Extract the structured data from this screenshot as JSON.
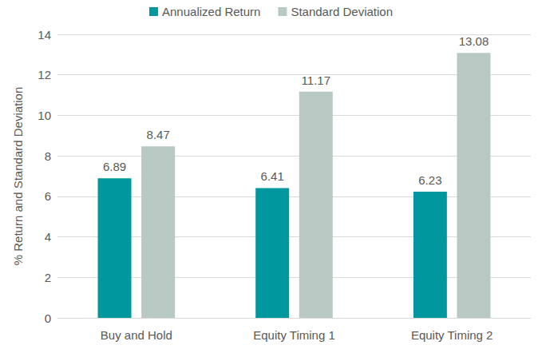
{
  "chart_data": {
    "type": "bar",
    "categories": [
      "Buy and Hold",
      "Equity Timing 1",
      "Equity Timing 2"
    ],
    "series": [
      {
        "name": "Annualized Return",
        "color": "#00979f",
        "values": [
          6.89,
          6.41,
          6.23
        ]
      },
      {
        "name": "Standard Deviation",
        "color": "#b8c9c3",
        "values": [
          8.47,
          11.17,
          13.08
        ]
      }
    ],
    "y_label": "% Return and Standard Deviation",
    "ylim": [
      0,
      14
    ],
    "yticks": [
      0,
      2,
      4,
      6,
      8,
      10,
      12,
      14
    ],
    "grid": true,
    "legend": "top",
    "data_labels": true
  }
}
